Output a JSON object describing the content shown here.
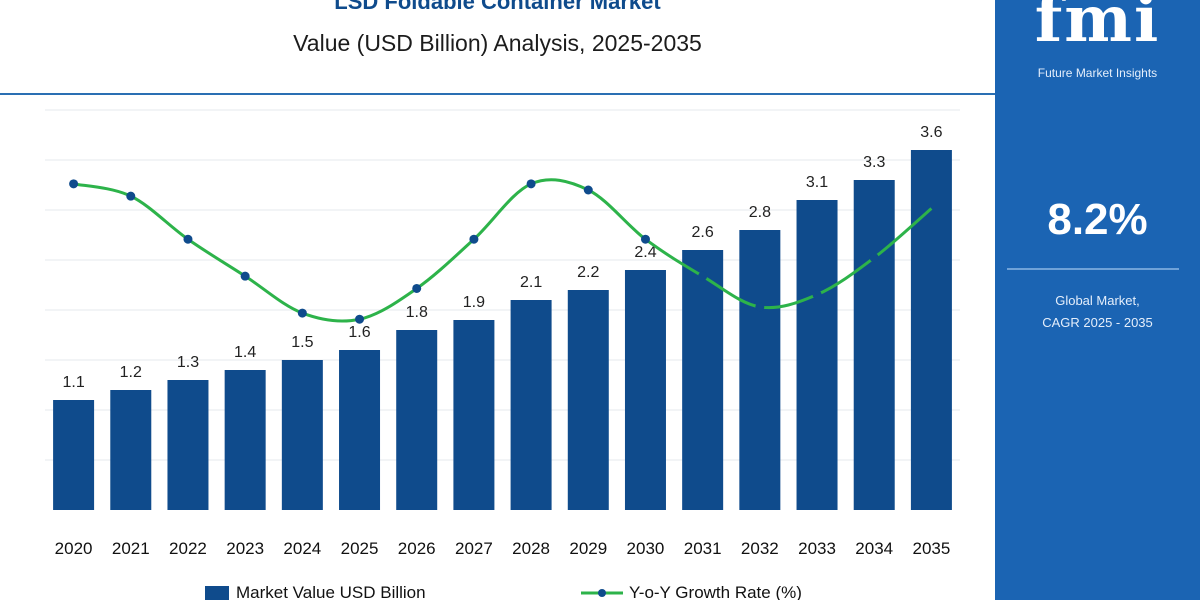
{
  "header": {
    "title": "LSD Foldable Container Market",
    "subtitle": "Value (USD Billion) Analysis, 2025-2035"
  },
  "brand": {
    "logo_text": "fmi",
    "name": "Future Market Insights",
    "color": "#1b64b3"
  },
  "cagr": {
    "value": "8.2%",
    "label_line1": "Global Market,",
    "label_line2": "CAGR 2025 - 2035"
  },
  "chart_data": {
    "type": "bar",
    "categories": [
      "2020",
      "2021",
      "2022",
      "2023",
      "2024",
      "2025",
      "2026",
      "2027",
      "2028",
      "2029",
      "2030",
      "2031",
      "2032",
      "2033",
      "2034",
      "2035"
    ],
    "series": [
      {
        "name": "Market Value USD Billion",
        "type": "bar",
        "color": "#0f4b8c",
        "values": [
          1.1,
          1.2,
          1.3,
          1.4,
          1.5,
          1.6,
          1.8,
          1.9,
          2.1,
          2.2,
          2.4,
          2.6,
          2.8,
          3.1,
          3.3,
          3.6
        ],
        "labels": [
          "1.1",
          "1.2",
          "1.3",
          "1.4",
          "1.5",
          "1.6",
          "1.8",
          "1.9",
          "2.1",
          "2.2",
          "2.4",
          "2.6",
          "2.8",
          "3.1",
          "3.3",
          "3.6"
        ]
      },
      {
        "name": "Y-o-Y Growth Rate (%)",
        "type": "line",
        "color": "#2db34a",
        "marker_color": "#0f4b8c",
        "values": [
          9.3,
          9.1,
          8.4,
          7.8,
          7.2,
          7.1,
          7.6,
          8.4,
          9.3,
          9.2,
          8.4,
          7.8,
          7.3,
          7.5,
          8.1,
          8.9
        ]
      }
    ],
    "ylim": [
      0,
      4.0
    ],
    "growth_ylim": [
      4.0,
      10.5
    ],
    "grid": true,
    "legend_position": "bottom"
  }
}
